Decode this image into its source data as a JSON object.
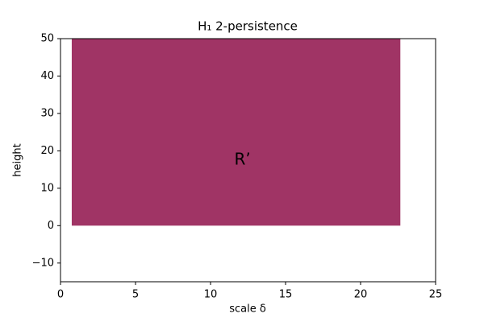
{
  "chart_data": {
    "type": "region",
    "title": "H₁ 2-persistence",
    "xlabel": "scale δ",
    "ylabel": "height",
    "regions": [
      {
        "label": "R’",
        "xlim": [
          0.75,
          22.65
        ],
        "ylim": [
          0,
          50
        ],
        "color": "#a03465"
      }
    ],
    "xlim": [
      0,
      25
    ],
    "ylim": [
      -15,
      50
    ],
    "xticks": [
      0,
      5,
      10,
      15,
      20,
      25
    ],
    "yticks": [
      {
        "value": -10,
        "label": "−10"
      },
      0,
      10,
      20,
      30,
      40,
      50
    ]
  }
}
